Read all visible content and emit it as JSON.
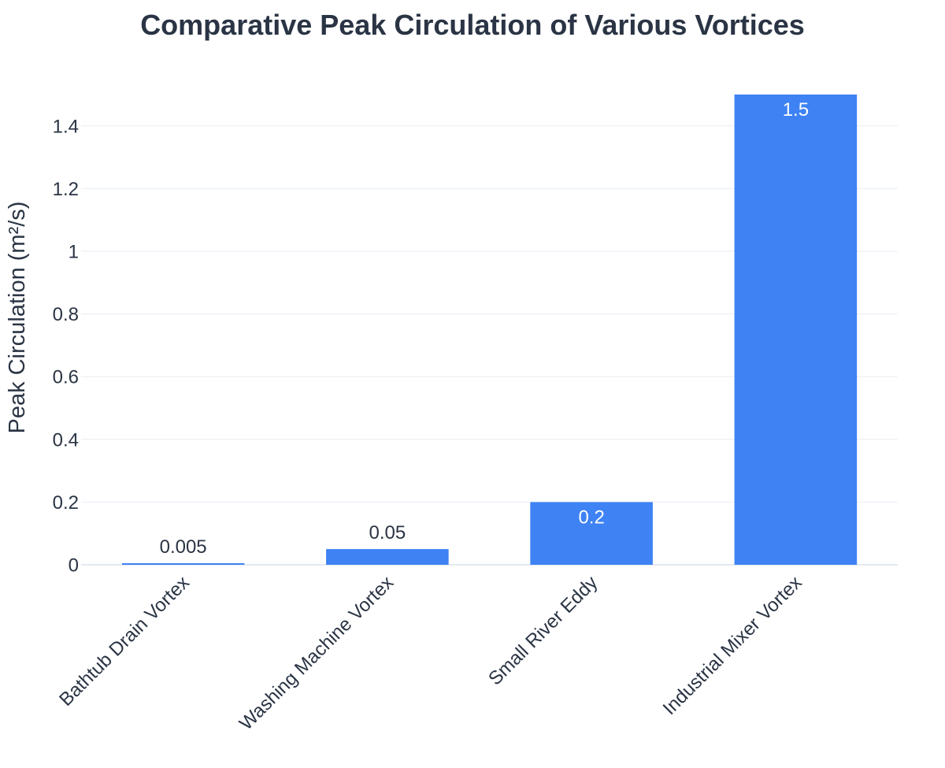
{
  "chart_data": {
    "type": "bar",
    "title": "Comparative Peak Circulation of Various Vortices",
    "xlabel": "",
    "ylabel": "Peak Circulation (m²/s)",
    "categories": [
      "Bathtub Drain Vortex",
      "Washing Machine Vortex",
      "Small River Eddy",
      "Industrial Mixer Vortex"
    ],
    "values": [
      0.005,
      0.05,
      0.2,
      1.5
    ],
    "value_labels": [
      "0.005",
      "0.05",
      "0.2",
      "1.5"
    ],
    "ylim": [
      0,
      1.5
    ],
    "y_ticks": [
      0,
      0.2,
      0.4,
      0.6,
      0.8,
      1,
      1.2,
      1.4
    ],
    "y_tick_labels": [
      "0",
      "0.2",
      "0.4",
      "0.6",
      "0.8",
      "1",
      "1.2",
      "1.4"
    ],
    "grid": true,
    "legend": "none",
    "colors": {
      "bar": "#3e82f4",
      "text": "#2a3444",
      "label_inside": "#ffffff",
      "grid": "#e8edf4",
      "background": "#ffffff"
    }
  }
}
